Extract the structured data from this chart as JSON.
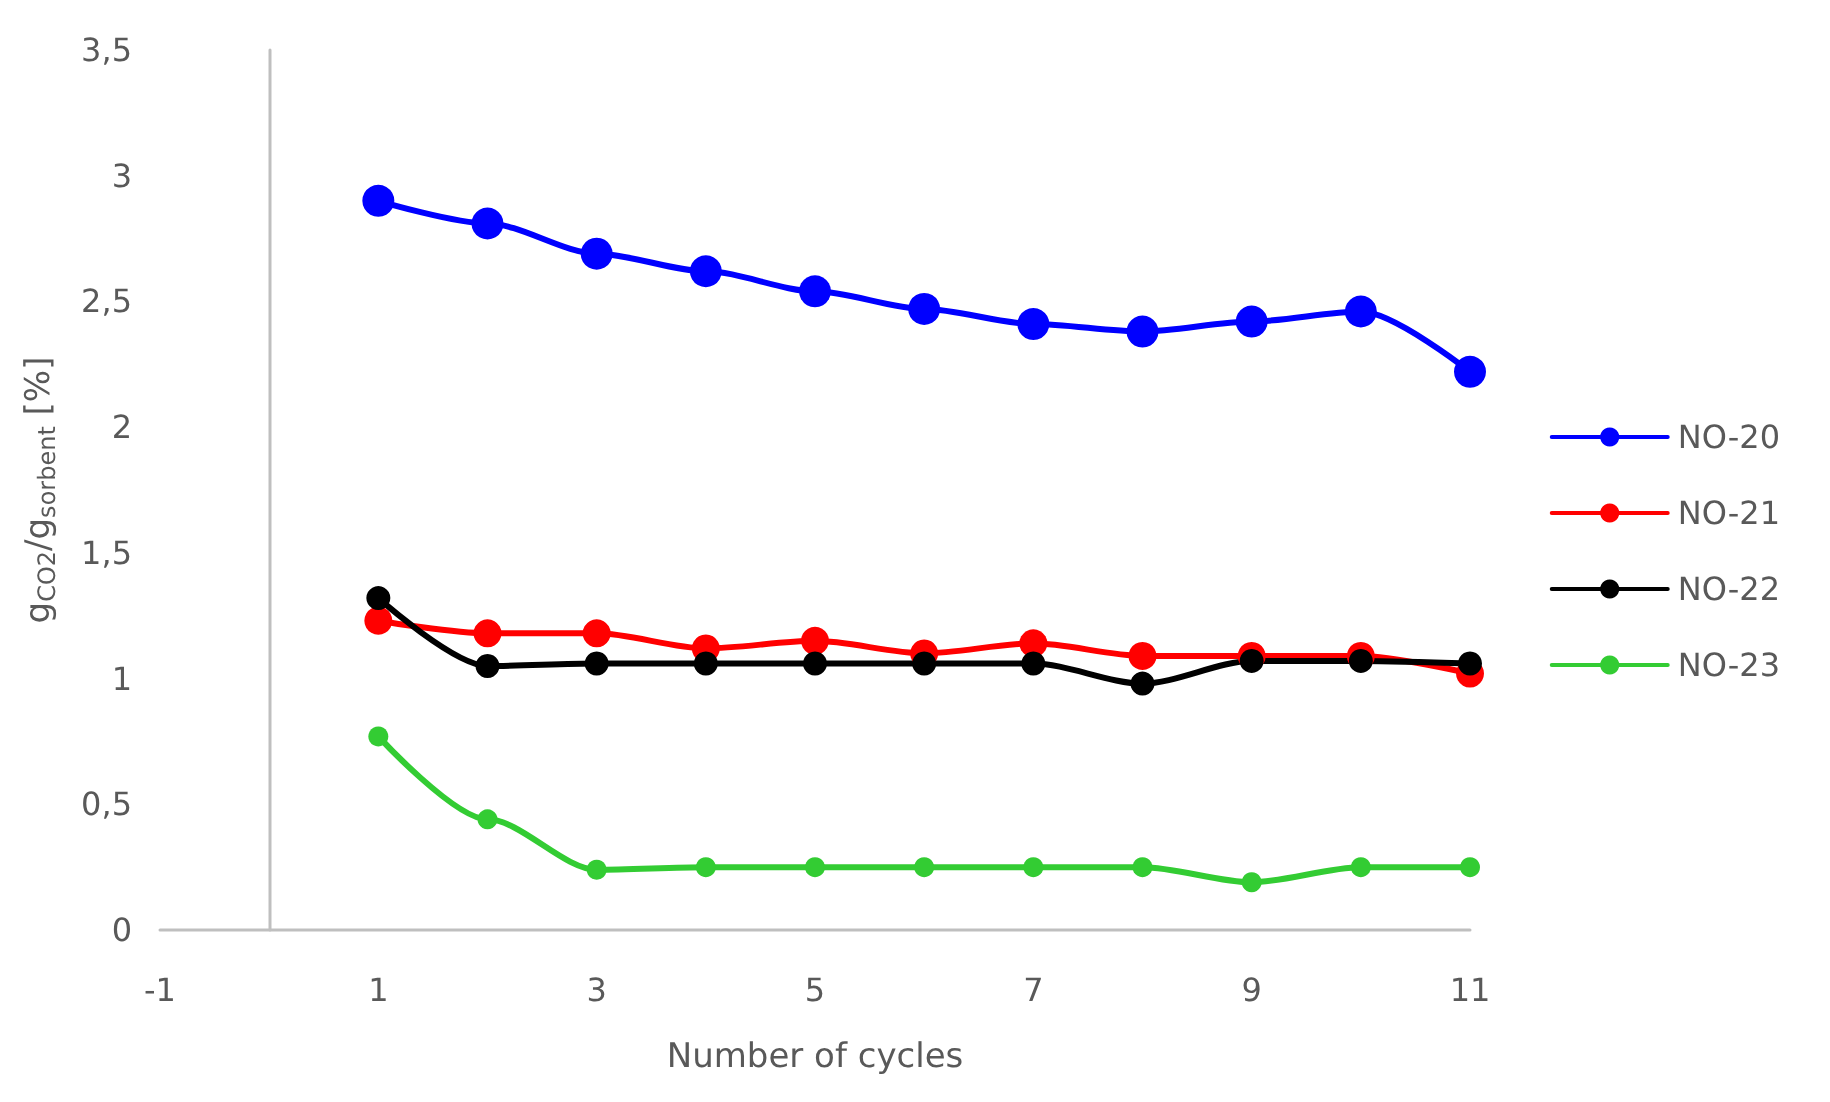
{
  "chart_data": {
    "type": "line",
    "xlabel": "Number of cycles",
    "ylabel": "g$_{CO2}$/g$_{sorbent}$ [%]",
    "x": [
      1,
      2,
      3,
      4,
      5,
      6,
      7,
      8,
      9,
      10,
      11
    ],
    "xlim": [
      -1,
      11
    ],
    "xticks": [
      -1,
      1,
      3,
      5,
      7,
      9,
      11
    ],
    "ylim": [
      0,
      3.5
    ],
    "yticks": [
      0,
      {
        "value": 0.5,
        "label": "0,5"
      },
      1,
      {
        "value": 1.5,
        "label": "1,5"
      },
      2,
      {
        "value": 2.5,
        "label": "2,5"
      },
      3,
      {
        "value": 3.5,
        "label": "3,5"
      }
    ],
    "grid": false,
    "legend": "right",
    "marker": "circle",
    "line_style": "solid",
    "series": [
      {
        "name": "NO-20",
        "color": "#0000ff",
        "values": [
          2.9,
          2.81,
          2.69,
          2.62,
          2.54,
          2.47,
          2.41,
          2.38,
          2.42,
          2.46,
          2.22
        ]
      },
      {
        "name": "NO-21",
        "color": "#ff0000",
        "values": [
          1.23,
          1.18,
          1.18,
          1.12,
          1.15,
          1.1,
          1.14,
          1.09,
          1.09,
          1.09,
          1.02
        ]
      },
      {
        "name": "NO-22",
        "color": "#000000",
        "values": [
          1.32,
          1.05,
          1.06,
          1.06,
          1.06,
          1.06,
          1.06,
          0.98,
          1.07,
          1.07,
          1.06
        ]
      },
      {
        "name": "NO-23",
        "color": "#33cc33",
        "values": [
          0.77,
          0.44,
          0.24,
          0.25,
          0.25,
          0.25,
          0.25,
          0.25,
          0.19,
          0.25,
          0.25
        ]
      }
    ]
  }
}
